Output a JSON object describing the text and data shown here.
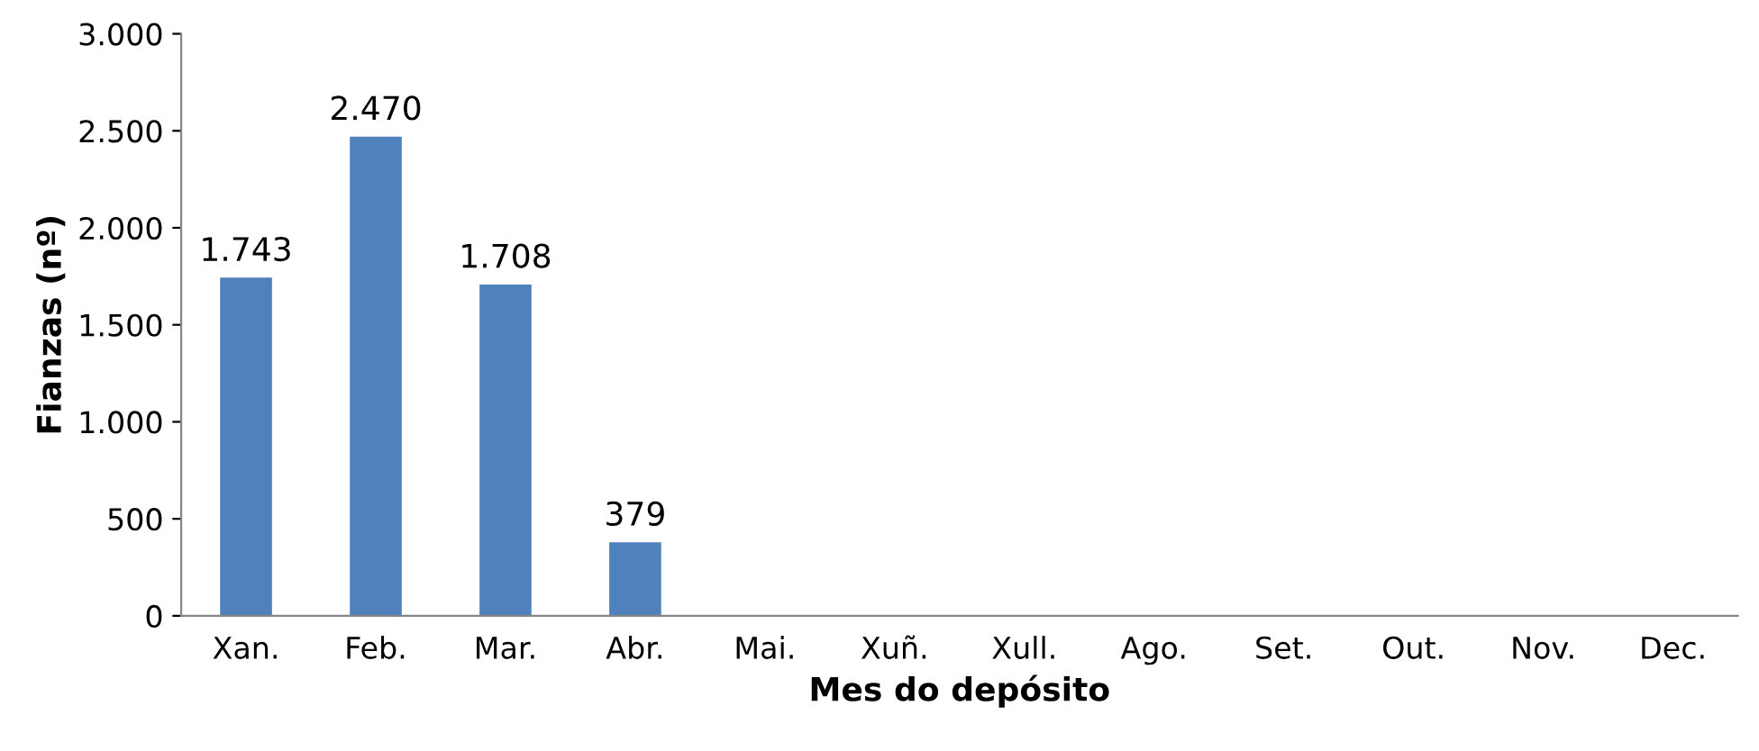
{
  "chart_data": {
    "type": "bar",
    "xlabel": "Mes do depósito",
    "ylabel": "Fianzas (nº)",
    "categories": [
      "Xan.",
      "Feb.",
      "Mar.",
      "Abr.",
      "Mai.",
      "Xuñ.",
      "Xull.",
      "Ago.",
      "Set.",
      "Out.",
      "Nov.",
      "Dec."
    ],
    "values": [
      1743,
      2470,
      1708,
      379,
      null,
      null,
      null,
      null,
      null,
      null,
      null,
      null
    ],
    "value_labels": [
      "1.743",
      "2.470",
      "1.708",
      "379",
      null,
      null,
      null,
      null,
      null,
      null,
      null,
      null
    ],
    "color": "#4f81bd",
    "ylim": [
      0,
      3000
    ],
    "yticks": [
      {
        "value": 0,
        "label": "0"
      },
      {
        "value": 500,
        "label": "500"
      },
      {
        "value": 1000,
        "label": "1.000"
      },
      {
        "value": 1500,
        "label": "1.500"
      },
      {
        "value": 2000,
        "label": "2.000"
      },
      {
        "value": 2500,
        "label": "2.500"
      },
      {
        "value": 3000,
        "label": "3.000"
      }
    ],
    "grid": false,
    "legend": false
  }
}
